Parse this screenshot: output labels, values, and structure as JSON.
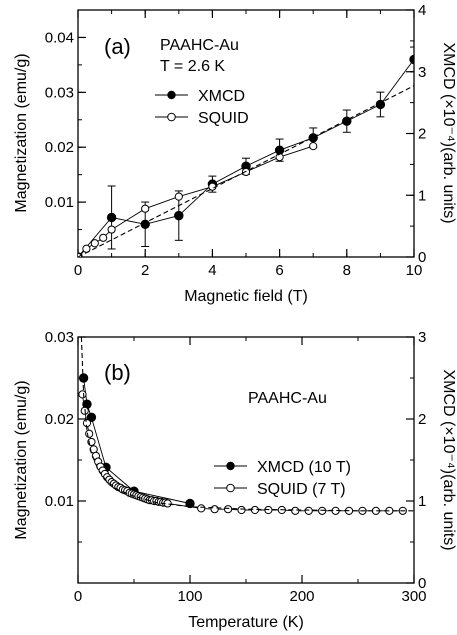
{
  "chart_data": [
    {
      "type": "scatter",
      "panel_label": "(a)",
      "annotation_lines": [
        "PAAHC-Au",
        "T = 2.6 K"
      ],
      "xlabel": "Magnetic field (T)",
      "ylabel": "Magnetization (emu/g)",
      "y2label": "XMCD (×10⁻⁴)(arb. units)",
      "xlim": [
        0,
        10
      ],
      "ylim": [
        0,
        0.045
      ],
      "y2lim": [
        0,
        4
      ],
      "x_ticks": [
        "0",
        "2",
        "4",
        "6",
        "8",
        "10"
      ],
      "y_ticks": [
        "0.01",
        "0.02",
        "0.03",
        "0.04"
      ],
      "y2_ticks": [
        "0",
        "1",
        "2",
        "3",
        "4"
      ],
      "legend_placement": "upper-left",
      "series": [
        {
          "name": "XMCD",
          "marker": "filled-circle",
          "axis": "right",
          "x": [
            0,
            1,
            2,
            3,
            4,
            5,
            6,
            7,
            8,
            9,
            10
          ],
          "y": [
            0,
            0.64,
            0.53,
            0.67,
            1.18,
            1.47,
            1.73,
            1.93,
            2.2,
            2.47,
            3.2
          ],
          "err": [
            0,
            0.51,
            0.36,
            0.4,
            0.13,
            0.13,
            0.18,
            0.16,
            0.18,
            0.2,
            0.2
          ]
        },
        {
          "name": "SQUID",
          "marker": "open-circle",
          "axis": "left",
          "x": [
            0,
            0.25,
            0.5,
            0.75,
            1,
            2,
            3,
            4,
            5,
            6,
            7
          ],
          "y": [
            0,
            0.0015,
            0.0025,
            0.0035,
            0.005,
            0.0088,
            0.011,
            0.0128,
            0.0155,
            0.0182,
            0.0202
          ]
        },
        {
          "name": "",
          "style": "dashed-line",
          "axis": "left",
          "x": [
            0,
            10
          ],
          "y": [
            0,
            0.0312
          ]
        }
      ]
    },
    {
      "type": "scatter",
      "panel_label": "(b)",
      "annotation_lines": [
        "PAAHC-Au"
      ],
      "xlabel": "Temperature (K)",
      "ylabel": "Magnetization (emu/g)",
      "y2label": "XMCD (×10⁻⁴)(arb. units)",
      "xlim": [
        0,
        300
      ],
      "ylim": [
        0,
        0.03
      ],
      "y2lim": [
        0,
        3
      ],
      "x_ticks": [
        "0",
        "100",
        "200",
        "300"
      ],
      "y_ticks": [
        "0.01",
        "0.02",
        "0.03"
      ],
      "y2_ticks": [
        "0",
        "1",
        "2",
        "3"
      ],
      "legend_placement": "center-right",
      "series": [
        {
          "name": "XMCD (10 T)",
          "marker": "filled-circle",
          "axis": "right",
          "x": [
            5,
            8,
            12,
            25,
            50,
            100
          ],
          "y": [
            2.5,
            2.18,
            2.02,
            1.41,
            1.12,
            0.97
          ]
        },
        {
          "name": "SQUID (7 T)",
          "marker": "open-circle",
          "axis": "left",
          "x": [
            4,
            6,
            8,
            10,
            12,
            14,
            16,
            18,
            20,
            22,
            24,
            26,
            28,
            30,
            32,
            34,
            36,
            38,
            40,
            42,
            44,
            46,
            48,
            50,
            52,
            54,
            56,
            58,
            60,
            62,
            64,
            66,
            68,
            70,
            72,
            74,
            76,
            78,
            80,
            110,
            122,
            134,
            146,
            158,
            170,
            182,
            194,
            206,
            218,
            230,
            242,
            254,
            266,
            278,
            290
          ],
          "y": [
            0.023,
            0.021,
            0.0195,
            0.0182,
            0.0172,
            0.0163,
            0.0155,
            0.0148,
            0.0142,
            0.0137,
            0.0133,
            0.0129,
            0.0126,
            0.0123,
            0.0121,
            0.0119,
            0.0117,
            0.0116,
            0.0114,
            0.0113,
            0.0112,
            0.011,
            0.0109,
            0.0108,
            0.0107,
            0.0106,
            0.0105,
            0.0104,
            0.0103,
            0.0102,
            0.0101,
            0.0101,
            0.01,
            0.01,
            0.0099,
            0.0099,
            0.0098,
            0.0098,
            0.0097,
            0.0091,
            0.009,
            0.009,
            0.0089,
            0.0089,
            0.0089,
            0.0089,
            0.0088,
            0.0088,
            0.0088,
            0.0088,
            0.0088,
            0.0088,
            0.0088,
            0.0088,
            0.0088
          ]
        },
        {
          "name": "",
          "style": "dashed-line",
          "axis": "left",
          "x": [
            3,
            5,
            8,
            12,
            18,
            25,
            35,
            50,
            70,
            100,
            150,
            200,
            250,
            300
          ],
          "y": [
            0.03,
            0.023,
            0.0185,
            0.0158,
            0.0138,
            0.0125,
            0.0114,
            0.0106,
            0.0098,
            0.0093,
            0.009,
            0.0089,
            0.0088,
            0.0088
          ]
        }
      ]
    }
  ]
}
